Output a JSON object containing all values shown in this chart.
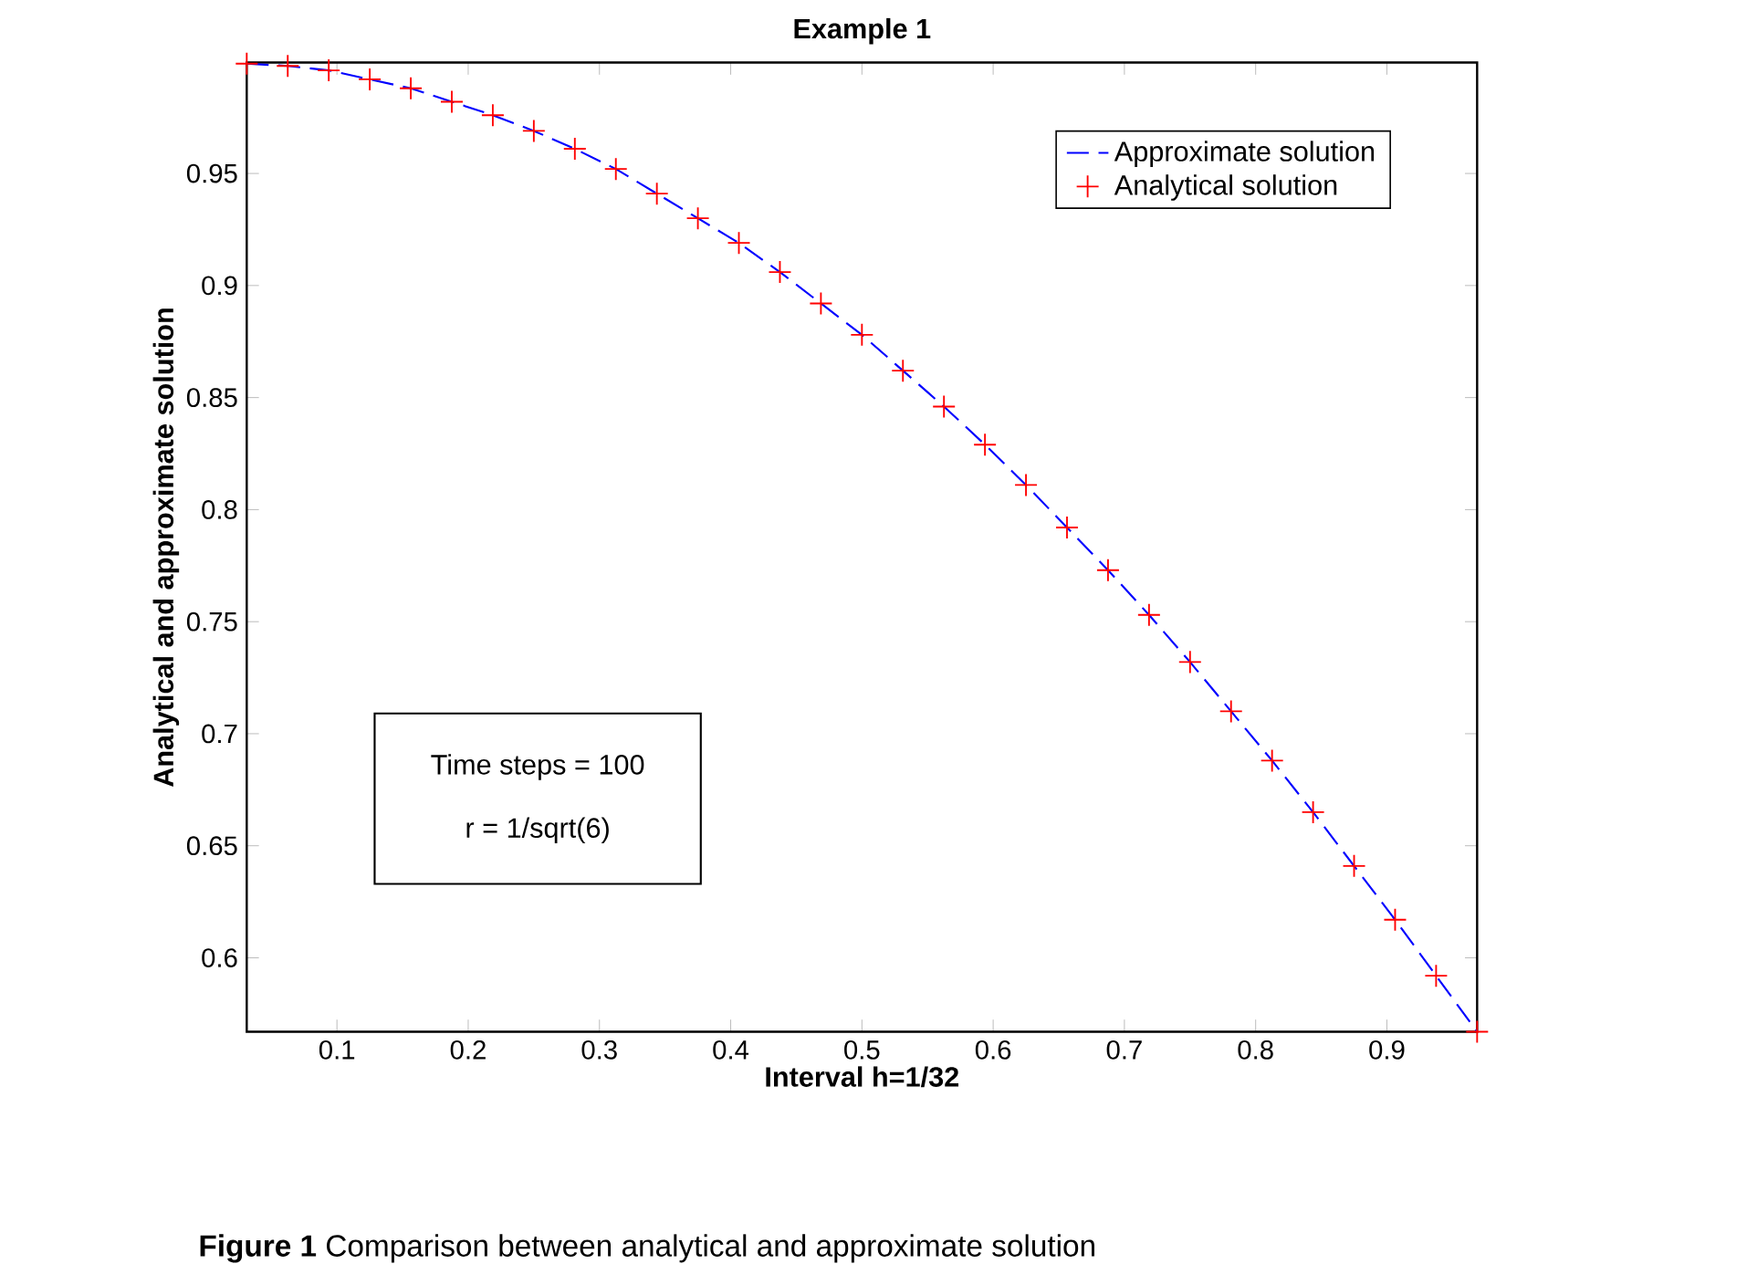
{
  "chart_data": {
    "type": "line",
    "title": "Example 1",
    "xlabel": "Interval h=1/32",
    "ylabel": "Analytical and approximate solution",
    "x": [
      0.03125,
      0.0625,
      0.09375,
      0.125,
      0.15625,
      0.1875,
      0.21875,
      0.25,
      0.28125,
      0.3125,
      0.34375,
      0.375,
      0.40625,
      0.4375,
      0.46875,
      0.5,
      0.53125,
      0.5625,
      0.59375,
      0.625,
      0.65625,
      0.6875,
      0.71875,
      0.75,
      0.78125,
      0.8125,
      0.84375,
      0.875,
      0.90625,
      0.9375,
      0.96875
    ],
    "series": [
      {
        "name": "Approximate solution",
        "type": "line",
        "color": "#0000ff",
        "line_style": "dashed",
        "marker": "none",
        "values": [
          0.999,
          0.998,
          0.996,
          0.992,
          0.988,
          0.982,
          0.976,
          0.969,
          0.961,
          0.952,
          0.941,
          0.93,
          0.919,
          0.906,
          0.892,
          0.878,
          0.862,
          0.846,
          0.829,
          0.811,
          0.792,
          0.773,
          0.753,
          0.732,
          0.71,
          0.688,
          0.665,
          0.641,
          0.617,
          0.592,
          0.567
        ]
      },
      {
        "name": "Analytical solution",
        "type": "scatter",
        "color": "#ff0000",
        "marker": "cross",
        "values": [
          0.999,
          0.998,
          0.996,
          0.992,
          0.988,
          0.982,
          0.976,
          0.969,
          0.961,
          0.952,
          0.941,
          0.93,
          0.919,
          0.906,
          0.892,
          0.878,
          0.862,
          0.846,
          0.829,
          0.811,
          0.792,
          0.773,
          0.753,
          0.732,
          0.71,
          0.688,
          0.665,
          0.641,
          0.617,
          0.592,
          0.567
        ]
      }
    ],
    "xlim": [
      0.03125,
      0.96875
    ],
    "ylim": [
      0.567,
      0.9995
    ],
    "xticks": [
      0.1,
      0.2,
      0.3,
      0.4,
      0.5,
      0.6,
      0.7,
      0.8,
      0.9
    ],
    "yticks": [
      0.6,
      0.65,
      0.7,
      0.75,
      0.8,
      0.85,
      0.9,
      0.95
    ],
    "grid": false,
    "legend": "top right",
    "annotations": [
      "Time steps = 100",
      "r = 1/sqrt(6)",
      "**Figure 1** Comparison between analytical and approximate solution"
    ]
  }
}
